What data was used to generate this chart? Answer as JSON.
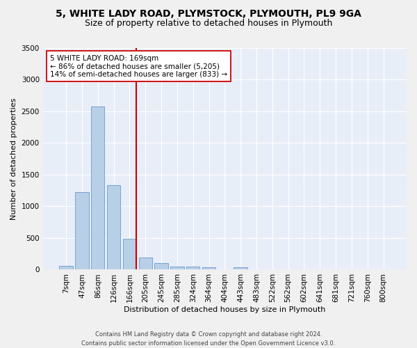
{
  "title1": "5, WHITE LADY ROAD, PLYMSTOCK, PLYMOUTH, PL9 9GA",
  "title2": "Size of property relative to detached houses in Plymouth",
  "xlabel": "Distribution of detached houses by size in Plymouth",
  "ylabel": "Number of detached properties",
  "bar_color": "#b8cfe8",
  "bar_edge_color": "#6699cc",
  "categories": [
    "7sqm",
    "47sqm",
    "86sqm",
    "126sqm",
    "166sqm",
    "205sqm",
    "245sqm",
    "285sqm",
    "324sqm",
    "364sqm",
    "404sqm",
    "443sqm",
    "483sqm",
    "522sqm",
    "562sqm",
    "602sqm",
    "641sqm",
    "681sqm",
    "721sqm",
    "760sqm",
    "800sqm"
  ],
  "values": [
    55,
    1220,
    2580,
    1340,
    490,
    195,
    105,
    50,
    45,
    35,
    0,
    35,
    0,
    0,
    0,
    0,
    0,
    0,
    0,
    0,
    0
  ],
  "vline_color": "#cc0000",
  "annotation_text": "5 WHITE LADY ROAD: 169sqm\n← 86% of detached houses are smaller (5,205)\n14% of semi-detached houses are larger (833) →",
  "annotation_box_color": "#ffffff",
  "annotation_box_edge": "#cc0000",
  "ylim": [
    0,
    3500
  ],
  "yticks": [
    0,
    500,
    1000,
    1500,
    2000,
    2500,
    3000,
    3500
  ],
  "footnote": "Contains HM Land Registry data © Crown copyright and database right 2024.\nContains public sector information licensed under the Open Government Licence v3.0.",
  "background_color": "#e8eef8",
  "grid_color": "#ffffff",
  "title_fontsize": 10,
  "subtitle_fontsize": 9,
  "axis_label_fontsize": 8,
  "tick_fontsize": 7.5,
  "footnote_fontsize": 6
}
